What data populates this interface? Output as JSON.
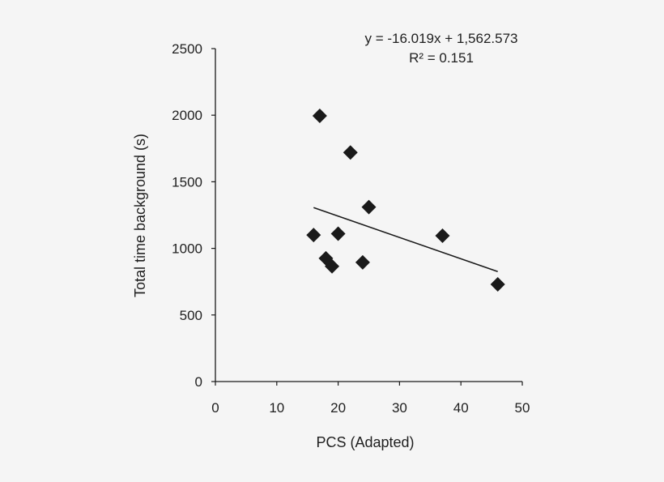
{
  "chart_data": {
    "type": "scatter",
    "title": "",
    "xlabel": "PCS (Adapted)",
    "ylabel": "Total time background (s)",
    "xlim": [
      0,
      50
    ],
    "ylim": [
      0,
      2500
    ],
    "x_ticks": [
      "0",
      "10",
      "20",
      "30",
      "40",
      "50"
    ],
    "y_ticks": [
      "0",
      "500",
      "1000",
      "1500",
      "2000",
      "2500"
    ],
    "grid": false,
    "legend": "none",
    "marker": "diamond",
    "marker_color": "#1a1a1a",
    "line_color": "#1a1a1a",
    "points": [
      {
        "x": 16,
        "y": 1100
      },
      {
        "x": 17,
        "y": 1995
      },
      {
        "x": 18,
        "y": 925
      },
      {
        "x": 19,
        "y": 865
      },
      {
        "x": 20,
        "y": 1110
      },
      {
        "x": 22,
        "y": 1720
      },
      {
        "x": 24,
        "y": 895
      },
      {
        "x": 25,
        "y": 1310
      },
      {
        "x": 37,
        "y": 1095
      },
      {
        "x": 46,
        "y": 730
      }
    ],
    "trendline": {
      "slope": -16.019,
      "intercept": 1562.573,
      "x_range": [
        16,
        46
      ],
      "equation_label": "y = -16.019x + 1,562.573",
      "r2_label": "R² = 0.151"
    }
  }
}
